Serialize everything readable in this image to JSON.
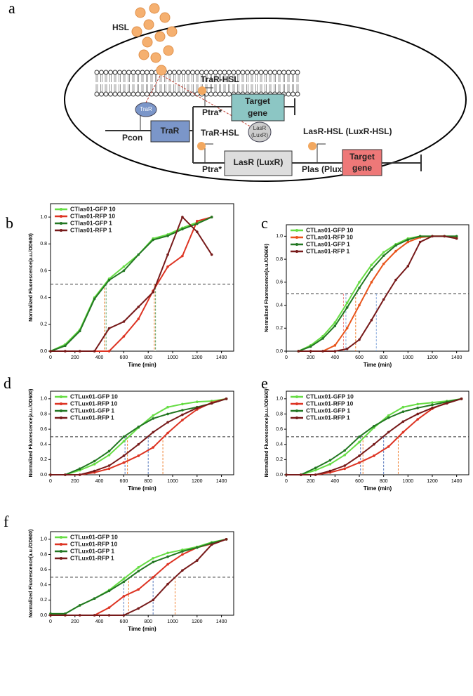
{
  "diagram": {
    "panel": "a",
    "hsl": "HSL",
    "trar_oval": "TraR",
    "trar_hsl_top": "TraR-HSL",
    "target_top": [
      "Target",
      "gene"
    ],
    "ptra_top": "Ptra*",
    "pcon": "Pcon",
    "trar_box": "TraR",
    "trar_hsl_bottom": "TraR-HSL",
    "ptra_bottom": "Ptra*",
    "lasr_oval": [
      "LasR",
      "(LuxR)"
    ],
    "lasr_box": "LasR (LuxR)",
    "lasr_hsl": "LasR-HSL (LuxR-HSL)",
    "plas": "Plas (Plux)",
    "target_bottom": [
      "Target",
      "gene"
    ]
  },
  "chart_data": [
    {
      "type": "line",
      "panel": "b",
      "xlabel": "Time (min)",
      "ylabel": "Normalized Fluorescence(a.u./OD600)",
      "xlim": [
        0,
        1500
      ],
      "ylim": [
        0,
        1.1
      ],
      "xticks": [
        0,
        200,
        400,
        600,
        800,
        1000,
        1200,
        1400
      ],
      "yticks": [
        {
          "value": 0,
          "label": "0.0"
        },
        {
          "value": 0.2,
          "label": "0.2"
        },
        {
          "value": 0.4,
          "label": "0.4"
        },
        {
          "value": 0.6,
          "label": "0.6"
        },
        {
          "value": 0.8,
          "label": "0.8"
        },
        {
          "value": 1,
          "label": "1.0"
        }
      ],
      "hline": 0.5,
      "vlines": [
        {
          "x": 440,
          "color": "#f08030"
        },
        {
          "x": 455,
          "color": "#60a060"
        },
        {
          "x": 850,
          "color": "#f08030"
        },
        {
          "x": 860,
          "color": "#60a060"
        }
      ],
      "x": [
        0,
        120,
        240,
        360,
        480,
        600,
        720,
        840,
        960,
        1080,
        1200,
        1320
      ],
      "series": [
        {
          "name": "CTlas01-GFP 10",
          "color": "#66dd44",
          "values": [
            0,
            0.05,
            0.16,
            0.4,
            0.54,
            0.63,
            0.72,
            0.84,
            0.87,
            0.92,
            0.96,
            1.0
          ]
        },
        {
          "name": "CTlas01-RFP 10",
          "color": "#dd3322",
          "values": [
            0,
            0,
            0,
            0,
            0,
            0.11,
            0.24,
            0.45,
            0.63,
            0.71,
            0.97,
            1.0
          ]
        },
        {
          "name": "CTlas01-GFP 1",
          "color": "#227722",
          "values": [
            0,
            0.04,
            0.15,
            0.39,
            0.53,
            0.6,
            0.72,
            0.83,
            0.86,
            0.91,
            0.95,
            1.0
          ]
        },
        {
          "name": "CTlas01-RFP 1",
          "color": "#771a1a",
          "values": [
            0,
            0,
            0,
            0,
            0.17,
            0.22,
            0.33,
            0.44,
            0.72,
            1.0,
            0.89,
            0.72
          ]
        }
      ]
    },
    {
      "type": "line",
      "panel": "c",
      "xlabel": "Time (min)",
      "ylabel": "Normalized Fluorescence(a.u./OD600)",
      "xlim": [
        0,
        1500
      ],
      "ylim": [
        0,
        1.1
      ],
      "xticks": [
        0,
        200,
        400,
        600,
        800,
        1000,
        1200,
        1400
      ],
      "yticks": [
        {
          "value": 0,
          "label": "0.0"
        },
        {
          "value": 0.2,
          "label": "0.2"
        },
        {
          "value": 0.4,
          "label": "0.4"
        },
        {
          "value": 0.6,
          "label": "0.6"
        },
        {
          "value": 0.8,
          "label": "0.8"
        },
        {
          "value": 1,
          "label": "1.0"
        }
      ],
      "hline": 0.5,
      "vlines": [
        {
          "x": 470,
          "color": "#ee8888"
        },
        {
          "x": 490,
          "color": "#88aadd"
        },
        {
          "x": 570,
          "color": "#f08030"
        },
        {
          "x": 740,
          "color": "#88aadd"
        }
      ],
      "x": [
        100,
        200,
        300,
        400,
        500,
        600,
        700,
        800,
        900,
        1000,
        1100,
        1200,
        1300,
        1400
      ],
      "series": [
        {
          "name": "CTLas01-GFP 10",
          "color": "#66dd44",
          "values": [
            0,
            0.05,
            0.13,
            0.25,
            0.42,
            0.6,
            0.75,
            0.86,
            0.93,
            0.98,
            1.0,
            1.0,
            1.0,
            1.0
          ]
        },
        {
          "name": "CTLas01-RFP 10",
          "color": "#e8541a",
          "values": [
            0,
            0,
            0,
            0.05,
            0.2,
            0.4,
            0.6,
            0.76,
            0.87,
            0.95,
            0.99,
            1.0,
            1.0,
            0.99
          ]
        },
        {
          "name": "CTLas01-GFP 1",
          "color": "#227722",
          "values": [
            0,
            0.04,
            0.11,
            0.22,
            0.38,
            0.55,
            0.71,
            0.83,
            0.92,
            0.97,
            1.0,
            1.0,
            1.0,
            1.0
          ]
        },
        {
          "name": "CTLas01-RFP 1",
          "color": "#771a1a",
          "values": [
            0,
            0,
            0,
            0,
            0.02,
            0.1,
            0.27,
            0.45,
            0.62,
            0.74,
            0.95,
            1.0,
            1.0,
            0.98
          ]
        }
      ]
    },
    {
      "type": "line",
      "panel": "d",
      "xlabel": "Time (min)",
      "ylabel": "Normalized Fluorescence(a.u./OD600)",
      "xlim": [
        0,
        1500
      ],
      "ylim": [
        0,
        1.1
      ],
      "xticks": [
        0,
        200,
        400,
        600,
        800,
        1000,
        1200,
        1400
      ],
      "yticks": [
        {
          "value": 0,
          "label": "0.0"
        },
        {
          "value": 0.2,
          "label": "0.2"
        },
        {
          "value": 0.4,
          "label": "0.4"
        },
        {
          "value": 0.6,
          "label": "0.6"
        },
        {
          "value": 0.8,
          "label": "0.8"
        },
        {
          "value": 1,
          "label": "1.0"
        }
      ],
      "hline": 0.5,
      "vlines": [
        {
          "x": 610,
          "color": "#5577bb"
        },
        {
          "x": 630,
          "color": "#f08030"
        },
        {
          "x": 800,
          "color": "#5577bb"
        },
        {
          "x": 920,
          "color": "#f08030"
        }
      ],
      "x": [
        0,
        120,
        240,
        360,
        480,
        600,
        720,
        840,
        960,
        1080,
        1200,
        1320,
        1440
      ],
      "series": [
        {
          "name": "CTLux01-GFP 10",
          "color": "#66dd44",
          "values": [
            0,
            0,
            0.06,
            0.14,
            0.26,
            0.44,
            0.62,
            0.78,
            0.89,
            0.93,
            0.96,
            0.97,
            1.0
          ]
        },
        {
          "name": "CTLux01-RFP 10",
          "color": "#dd3322",
          "values": [
            0,
            0,
            0,
            0.03,
            0.08,
            0.16,
            0.25,
            0.36,
            0.55,
            0.72,
            0.86,
            0.95,
            1.0
          ]
        },
        {
          "name": "CTLux01-GFP 1",
          "color": "#227722",
          "values": [
            0,
            0,
            0.08,
            0.18,
            0.31,
            0.5,
            0.63,
            0.74,
            0.8,
            0.85,
            0.89,
            0.94,
            1.0
          ]
        },
        {
          "name": "CTLux01-RFP 1",
          "color": "#771a1a",
          "values": [
            0,
            0,
            0,
            0.05,
            0.12,
            0.25,
            0.4,
            0.56,
            0.69,
            0.79,
            0.88,
            0.94,
            1.0
          ]
        }
      ]
    },
    {
      "type": "line",
      "panel": "e",
      "xlabel": "Time (min)",
      "ylabel": "Normalized Fluorescence(a.u./OD600)",
      "xlim": [
        0,
        1500
      ],
      "ylim": [
        0,
        1.1
      ],
      "xticks": [
        0,
        200,
        400,
        600,
        800,
        1000,
        1200,
        1400
      ],
      "yticks": [
        {
          "value": 0,
          "label": "0.0"
        },
        {
          "value": 0.2,
          "label": "0.2"
        },
        {
          "value": 0.4,
          "label": "0.4"
        },
        {
          "value": 0.6,
          "label": "0.6"
        },
        {
          "value": 0.8,
          "label": "0.8"
        },
        {
          "value": 1,
          "label": "1.0"
        }
      ],
      "hline": 0.5,
      "vlines": [
        {
          "x": 610,
          "color": "#5577bb"
        },
        {
          "x": 630,
          "color": "#f08030"
        },
        {
          "x": 800,
          "color": "#5577bb"
        },
        {
          "x": 920,
          "color": "#f08030"
        }
      ],
      "x": [
        0,
        120,
        240,
        360,
        480,
        600,
        720,
        840,
        960,
        1080,
        1200,
        1320,
        1440
      ],
      "series": [
        {
          "name": "CTLux01-GFP 10",
          "color": "#66dd44",
          "values": [
            0,
            0,
            0.06,
            0.14,
            0.26,
            0.43,
            0.62,
            0.78,
            0.89,
            0.93,
            0.95,
            0.97,
            1.0
          ]
        },
        {
          "name": "CTLux01-RFP 10",
          "color": "#dd3322",
          "values": [
            0,
            0,
            0,
            0.03,
            0.08,
            0.16,
            0.25,
            0.37,
            0.56,
            0.73,
            0.87,
            0.95,
            1.0
          ]
        },
        {
          "name": "CTLux01-GFP 1",
          "color": "#227722",
          "values": [
            0,
            0,
            0.09,
            0.19,
            0.32,
            0.5,
            0.64,
            0.75,
            0.83,
            0.88,
            0.92,
            0.96,
            1.0
          ]
        },
        {
          "name": "CTLux01-RFP 1",
          "color": "#771a1a",
          "values": [
            0,
            0,
            0,
            0.05,
            0.12,
            0.25,
            0.4,
            0.56,
            0.7,
            0.8,
            0.88,
            0.94,
            1.0
          ]
        }
      ]
    },
    {
      "type": "line",
      "panel": "f",
      "xlabel": "Time (min)",
      "ylabel": "Normalized Fluorescence(a.u./OD600)",
      "xlim": [
        0,
        1500
      ],
      "ylim": [
        0,
        1.1
      ],
      "xticks": [
        0,
        200,
        400,
        600,
        800,
        1000,
        1200,
        1400
      ],
      "yticks": [
        {
          "value": 0,
          "label": "0.0"
        },
        {
          "value": 0.2,
          "label": "0.2"
        },
        {
          "value": 0.4,
          "label": "0.4"
        },
        {
          "value": 0.6,
          "label": "0.6"
        },
        {
          "value": 0.8,
          "label": "0.8"
        },
        {
          "value": 1,
          "label": "1.0"
        }
      ],
      "hline": 0.5,
      "vlines": [
        {
          "x": 600,
          "color": "#5577bb"
        },
        {
          "x": 640,
          "color": "#f08030"
        },
        {
          "x": 840,
          "color": "#5577bb"
        },
        {
          "x": 1020,
          "color": "#f08030"
        }
      ],
      "x": [
        0,
        120,
        240,
        360,
        480,
        600,
        720,
        840,
        960,
        1080,
        1200,
        1320,
        1440
      ],
      "series": [
        {
          "name": "CTLux01-GFP 10",
          "color": "#66dd44",
          "values": [
            0.02,
            0.02,
            0.13,
            0.22,
            0.33,
            0.48,
            0.63,
            0.75,
            0.82,
            0.86,
            0.9,
            0.96,
            1.0
          ]
        },
        {
          "name": "CTLux01-RFP 10",
          "color": "#dd3322",
          "values": [
            0,
            0,
            0,
            0,
            0.1,
            0.25,
            0.34,
            0.5,
            0.67,
            0.8,
            0.89,
            0.94,
            1.0
          ]
        },
        {
          "name": "CTLux01-GFP 1",
          "color": "#227722",
          "values": [
            0.02,
            0.02,
            0.13,
            0.22,
            0.32,
            0.44,
            0.58,
            0.7,
            0.77,
            0.84,
            0.89,
            0.95,
            1.0
          ]
        },
        {
          "name": "CTLux01-RFP 1",
          "color": "#771a1a",
          "values": [
            0,
            0,
            0,
            0,
            0,
            0,
            0.09,
            0.2,
            0.41,
            0.59,
            0.72,
            0.93,
            1.0
          ]
        }
      ]
    }
  ]
}
